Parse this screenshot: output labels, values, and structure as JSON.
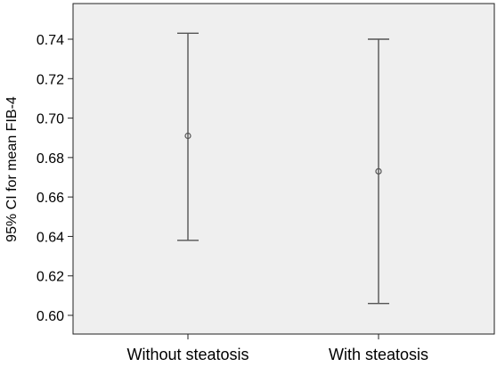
{
  "chart_data": {
    "type": "errorbar",
    "ylabel": "95% CI for mean FIB-4",
    "xlabel": "",
    "categories": [
      "Without steatosis",
      "With steatosis"
    ],
    "series": [
      {
        "values": [
          {
            "mean": 0.691,
            "lower": 0.638,
            "upper": 0.743
          },
          {
            "mean": 0.673,
            "lower": 0.606,
            "upper": 0.74
          }
        ]
      }
    ],
    "yticks": [
      "0.60",
      "0.62",
      "0.64",
      "0.66",
      "0.68",
      "0.70",
      "0.72",
      "0.74"
    ],
    "ylim": [
      0.595,
      0.749
    ],
    "grid": false,
    "legend": "none"
  },
  "colors": {
    "plot_background": "#efefef",
    "frame": "#222222",
    "error_bar": "#555555"
  }
}
